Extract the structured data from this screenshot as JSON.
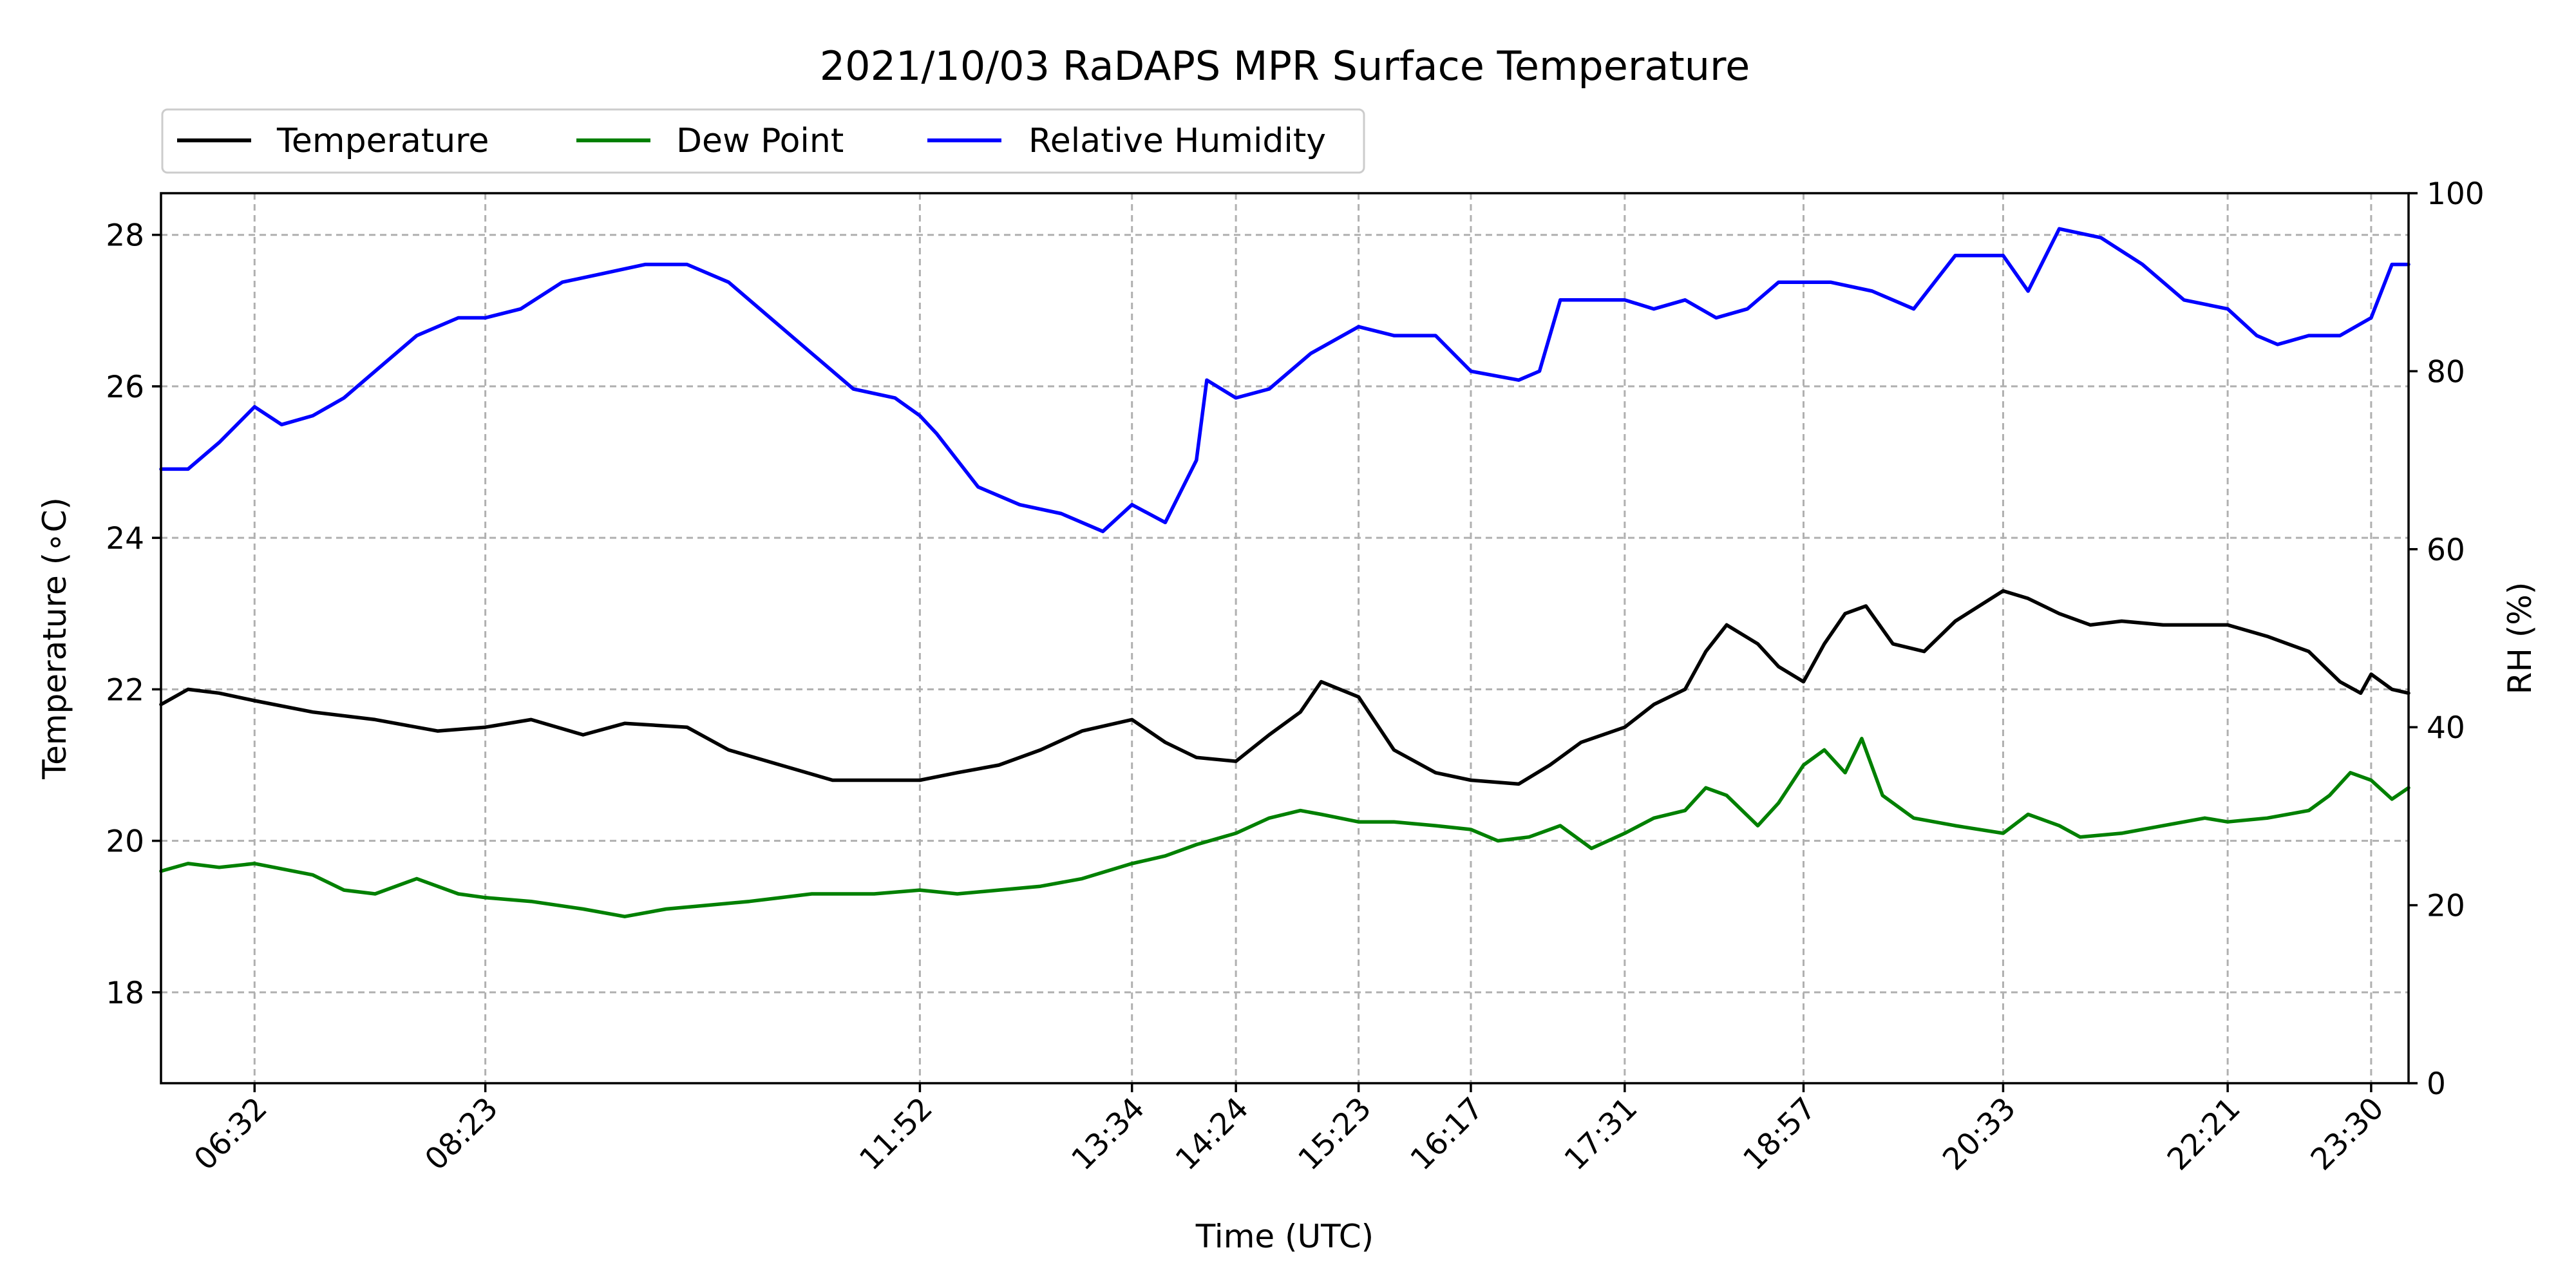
{
  "chart_data": {
    "type": "line",
    "title": "2021/10/03 RaDAPS MPR Surface Temperature",
    "xlabel": "Time (UTC)",
    "ylabel": "Temperature (∘C)",
    "y2label": "RH (%)",
    "xlim": [
      "05:47",
      "23:48"
    ],
    "ylim": [
      16.8,
      28.55
    ],
    "y2lim": [
      0,
      100
    ],
    "x_ticks": [
      "06:32",
      "08:23",
      "11:52",
      "13:34",
      "14:24",
      "15:23",
      "16:17",
      "17:31",
      "18:57",
      "20:33",
      "22:21",
      "23:30"
    ],
    "y_ticks": [
      18,
      20,
      22,
      24,
      26,
      28
    ],
    "y2_ticks": [
      0,
      20,
      40,
      60,
      80,
      100
    ],
    "grid": true,
    "legend_position": "top-left",
    "series": [
      {
        "name": "Temperature",
        "axis": "left",
        "color": "#000000",
        "x": [
          "05:47",
          "06:00",
          "06:15",
          "06:32",
          "07:00",
          "07:30",
          "08:00",
          "08:23",
          "08:45",
          "09:10",
          "09:30",
          "10:00",
          "10:20",
          "10:45",
          "11:10",
          "11:30",
          "11:52",
          "12:10",
          "12:30",
          "12:50",
          "13:10",
          "13:34",
          "13:50",
          "14:05",
          "14:24",
          "14:40",
          "14:55",
          "15:05",
          "15:23",
          "15:40",
          "16:00",
          "16:17",
          "16:40",
          "16:55",
          "17:10",
          "17:31",
          "17:45",
          "18:00",
          "18:10",
          "18:20",
          "18:35",
          "18:45",
          "18:57",
          "19:07",
          "19:17",
          "19:27",
          "19:40",
          "19:55",
          "20:10",
          "20:33",
          "20:45",
          "21:00",
          "21:15",
          "21:30",
          "21:50",
          "22:10",
          "22:21",
          "22:40",
          "23:00",
          "23:15",
          "23:25",
          "23:30",
          "23:40",
          "23:48"
        ],
        "values": [
          21.8,
          22.0,
          21.95,
          21.85,
          21.7,
          21.6,
          21.45,
          21.5,
          21.6,
          21.4,
          21.55,
          21.5,
          21.2,
          21.0,
          20.8,
          20.8,
          20.8,
          20.9,
          21.0,
          21.2,
          21.45,
          21.6,
          21.3,
          21.1,
          21.05,
          21.4,
          21.7,
          22.1,
          21.9,
          21.2,
          20.9,
          20.8,
          20.75,
          21.0,
          21.3,
          21.5,
          21.8,
          22.0,
          22.5,
          22.85,
          22.6,
          22.3,
          22.1,
          22.6,
          23.0,
          23.1,
          22.6,
          22.5,
          22.9,
          23.3,
          23.2,
          23.0,
          22.85,
          22.9,
          22.85,
          22.85,
          22.85,
          22.7,
          22.5,
          22.1,
          21.95,
          22.2,
          22.0,
          21.95
        ]
      },
      {
        "name": "Dew Point",
        "axis": "left",
        "color": "#008000",
        "x": [
          "05:47",
          "06:00",
          "06:15",
          "06:32",
          "07:00",
          "07:15",
          "07:30",
          "07:50",
          "08:10",
          "08:23",
          "08:45",
          "09:10",
          "09:30",
          "09:50",
          "10:10",
          "10:30",
          "11:00",
          "11:30",
          "11:52",
          "12:10",
          "12:30",
          "12:50",
          "13:10",
          "13:34",
          "13:50",
          "14:05",
          "14:24",
          "14:40",
          "14:55",
          "15:05",
          "15:23",
          "15:40",
          "16:00",
          "16:17",
          "16:30",
          "16:45",
          "17:00",
          "17:15",
          "17:31",
          "17:45",
          "18:00",
          "18:10",
          "18:20",
          "18:35",
          "18:45",
          "18:57",
          "19:07",
          "19:17",
          "19:25",
          "19:35",
          "19:50",
          "20:10",
          "20:33",
          "20:45",
          "21:00",
          "21:10",
          "21:30",
          "21:50",
          "22:10",
          "22:21",
          "22:40",
          "23:00",
          "23:10",
          "23:20",
          "23:30",
          "23:40",
          "23:48"
        ],
        "values": [
          19.6,
          19.7,
          19.65,
          19.7,
          19.55,
          19.35,
          19.3,
          19.5,
          19.3,
          19.25,
          19.2,
          19.1,
          19.0,
          19.1,
          19.15,
          19.2,
          19.3,
          19.3,
          19.35,
          19.3,
          19.35,
          19.4,
          19.5,
          19.7,
          19.8,
          19.95,
          20.1,
          20.3,
          20.4,
          20.35,
          20.25,
          20.25,
          20.2,
          20.15,
          20.0,
          20.05,
          20.2,
          19.9,
          20.1,
          20.3,
          20.4,
          20.7,
          20.6,
          20.2,
          20.5,
          21.0,
          21.2,
          20.9,
          21.35,
          20.6,
          20.3,
          20.2,
          20.1,
          20.35,
          20.2,
          20.05,
          20.1,
          20.2,
          20.3,
          20.25,
          20.3,
          20.4,
          20.6,
          20.9,
          20.8,
          20.55,
          20.7
        ]
      },
      {
        "name": "Relative Humidity",
        "axis": "right",
        "color": "#0000ff",
        "x": [
          "05:47",
          "06:00",
          "06:15",
          "06:32",
          "06:45",
          "07:00",
          "07:15",
          "07:30",
          "07:50",
          "08:10",
          "08:23",
          "08:40",
          "09:00",
          "09:20",
          "09:40",
          "10:00",
          "10:20",
          "10:40",
          "11:00",
          "11:20",
          "11:40",
          "11:52",
          "12:00",
          "12:20",
          "12:40",
          "13:00",
          "13:20",
          "13:34",
          "13:50",
          "14:05",
          "14:10",
          "14:24",
          "14:40",
          "15:00",
          "15:23",
          "15:40",
          "16:00",
          "16:17",
          "16:40",
          "16:50",
          "17:00",
          "17:31",
          "17:45",
          "18:00",
          "18:15",
          "18:30",
          "18:45",
          "18:57",
          "19:10",
          "19:30",
          "19:50",
          "20:10",
          "20:33",
          "20:45",
          "21:00",
          "21:20",
          "21:40",
          "22:00",
          "22:21",
          "22:35",
          "22:45",
          "23:00",
          "23:15",
          "23:30",
          "23:40",
          "23:48"
        ],
        "values": [
          69,
          69,
          72,
          76,
          74,
          75,
          77,
          80,
          84,
          86,
          86,
          87,
          90,
          91,
          92,
          92,
          90,
          86,
          82,
          78,
          77,
          75,
          73,
          67,
          65,
          64,
          62,
          65,
          63,
          70,
          79,
          77,
          78,
          82,
          85,
          84,
          84,
          80,
          79,
          80,
          88,
          88,
          87,
          88,
          86,
          87,
          90,
          90,
          90,
          89,
          87,
          93,
          93,
          89,
          96,
          95,
          92,
          88,
          87,
          84,
          83,
          84,
          84,
          86,
          92,
          92
        ]
      }
    ]
  }
}
